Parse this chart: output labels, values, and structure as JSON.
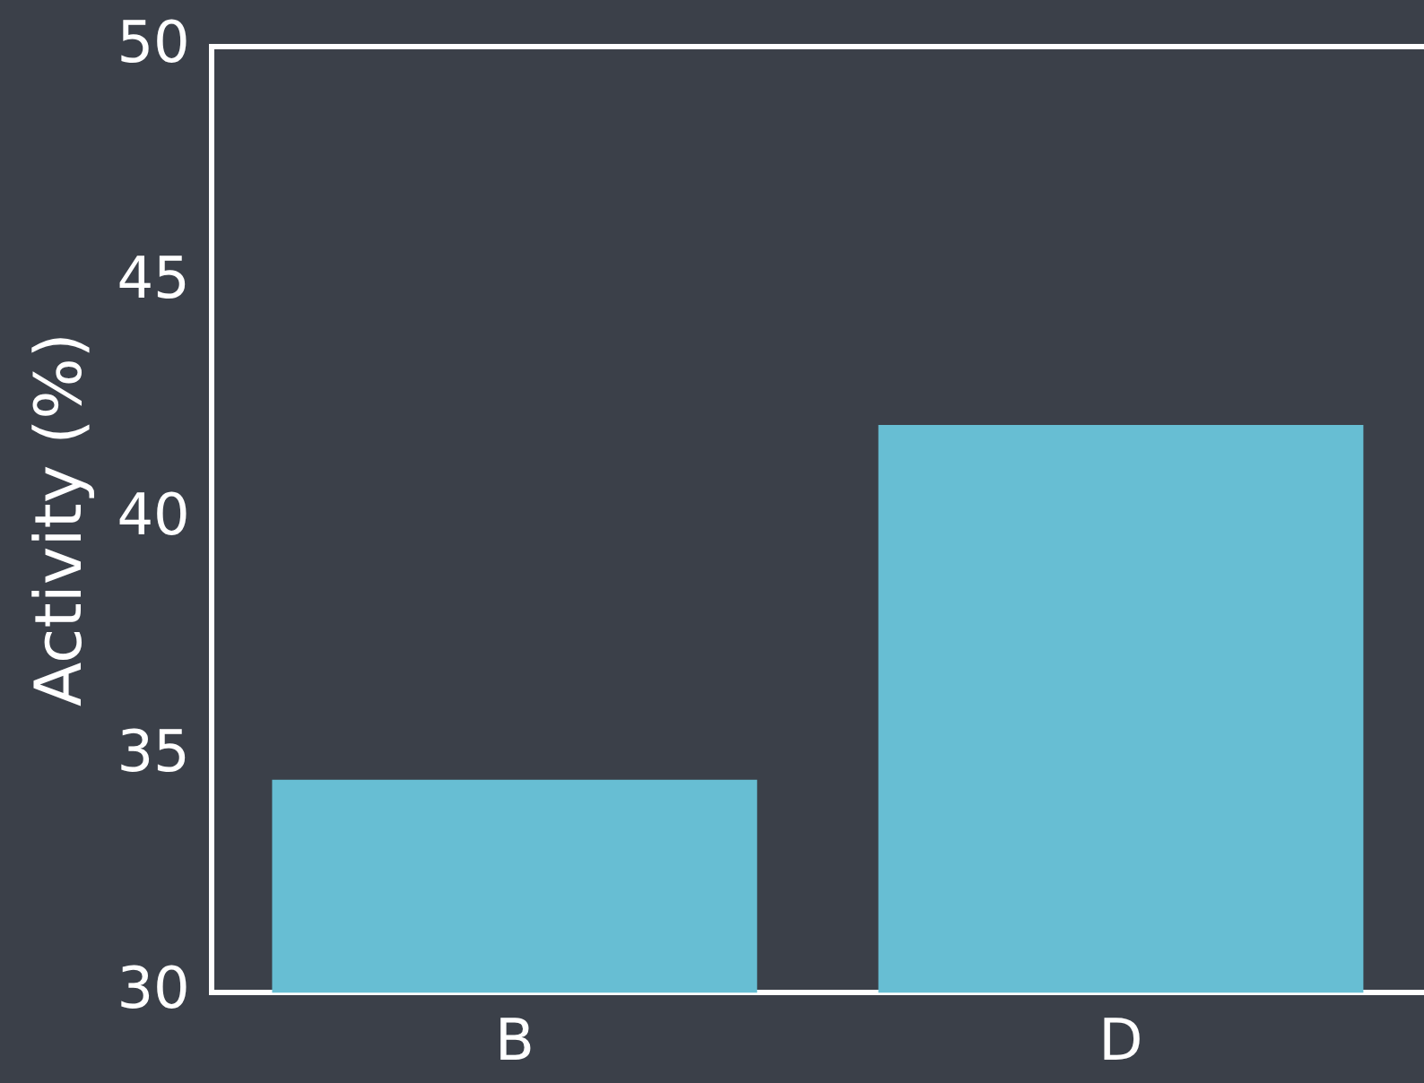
{
  "chart_data": {
    "type": "bar",
    "ylabel": "Activity (%)",
    "categories": [
      "B",
      "D"
    ],
    "values": [
      34.5,
      42
    ],
    "color": "#67bed3",
    "ylim": [
      30,
      50
    ],
    "yticks": [
      30,
      35,
      40,
      45,
      50
    ],
    "grid": false,
    "legend": false
  }
}
